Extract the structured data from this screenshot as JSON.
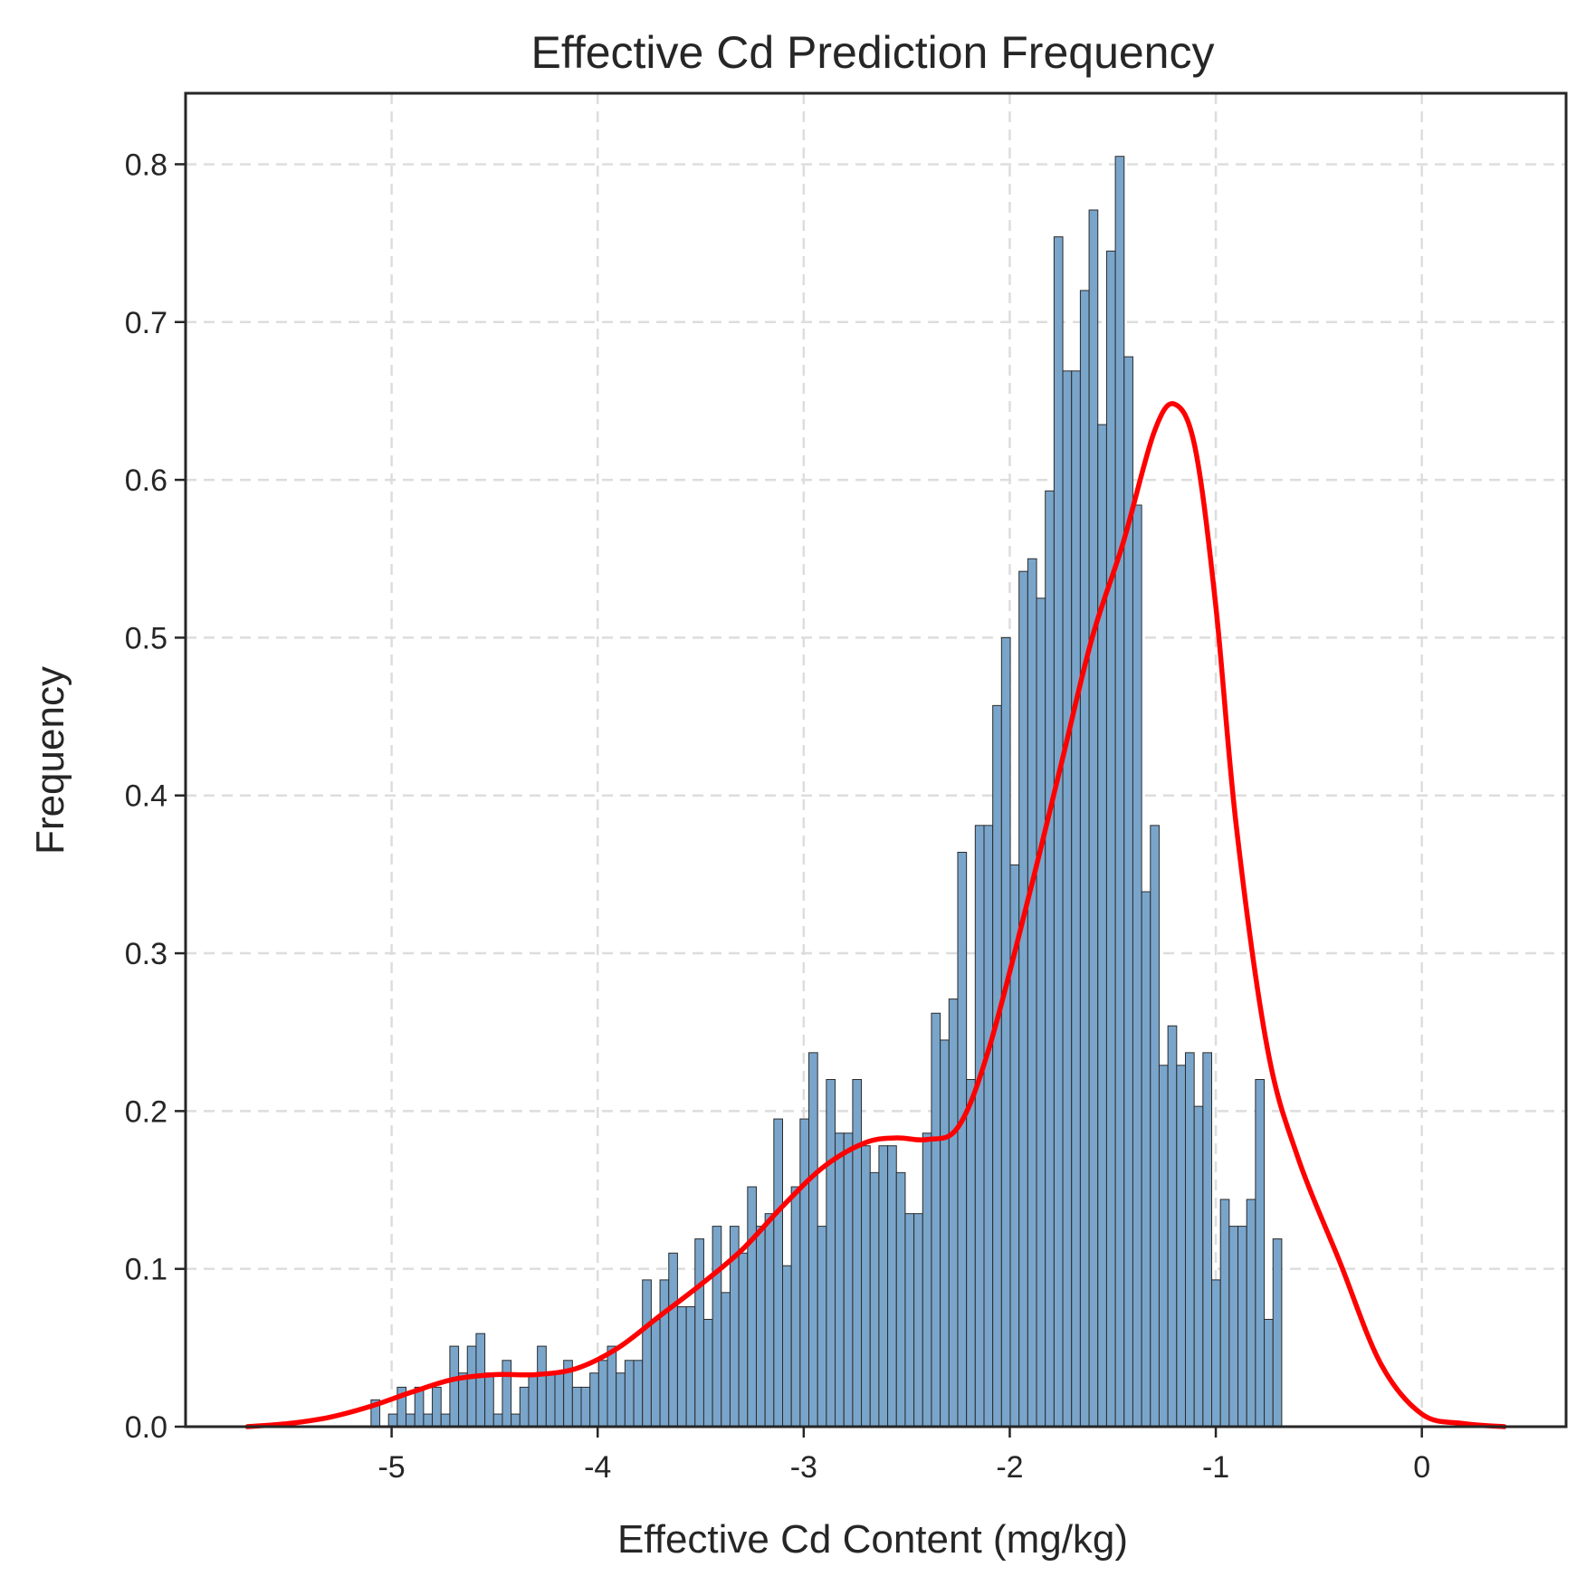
{
  "chart_data": {
    "type": "bar",
    "title": "Effective Cd Prediction Frequency",
    "xlabel": "Effective Cd Content (mg/kg)",
    "ylabel": "Frequency",
    "xlim": [
      -6.0,
      0.7
    ],
    "ylim": [
      0,
      0.845
    ],
    "xticks": [
      -5,
      -4,
      -3,
      -2,
      -1,
      0
    ],
    "xtick_labels": [
      "-5",
      "-4",
      "-3",
      "-2",
      "-1",
      "0"
    ],
    "yticks": [
      0,
      0.1,
      0.2,
      0.3,
      0.4,
      0.5,
      0.6,
      0.7,
      0.8
    ],
    "ytick_labels": [
      "0.0",
      "0.1",
      "0.2",
      "0.3",
      "0.4",
      "0.5",
      "0.6",
      "0.7",
      "0.8"
    ],
    "grid": true,
    "colors": {
      "bars": "#7aa5cb",
      "bar_edge": "#2b2b2b",
      "kde": "#ff0000"
    },
    "histogram": {
      "bin_start": -5.1,
      "bin_width": 0.0425,
      "values": [
        0.017,
        0.0,
        0.008,
        0.025,
        0.008,
        0.025,
        0.008,
        0.025,
        0.008,
        0.051,
        0.034,
        0.051,
        0.059,
        0.034,
        0.008,
        0.042,
        0.008,
        0.025,
        0.034,
        0.051,
        0.034,
        0.034,
        0.042,
        0.025,
        0.025,
        0.034,
        0.042,
        0.051,
        0.034,
        0.042,
        0.042,
        0.093,
        0.068,
        0.093,
        0.11,
        0.076,
        0.076,
        0.119,
        0.068,
        0.127,
        0.085,
        0.127,
        0.11,
        0.152,
        0.127,
        0.135,
        0.195,
        0.102,
        0.152,
        0.195,
        0.237,
        0.127,
        0.22,
        0.186,
        0.186,
        0.22,
        0.178,
        0.161,
        0.178,
        0.178,
        0.161,
        0.135,
        0.135,
        0.186,
        0.262,
        0.245,
        0.271,
        0.364,
        0.22,
        0.381,
        0.381,
        0.457,
        0.5,
        0.356,
        0.542,
        0.55,
        0.525,
        0.593,
        0.754,
        0.669,
        0.669,
        0.72,
        0.771,
        0.635,
        0.745,
        0.805,
        0.678,
        0.584,
        0.339,
        0.381,
        0.229,
        0.254,
        0.229,
        0.237,
        0.203,
        0.237,
        0.093,
        0.144,
        0.127,
        0.127,
        0.144,
        0.22,
        0.068,
        0.119
      ]
    },
    "kde": {
      "x": [
        -5.7,
        -5.5,
        -5.3,
        -5.1,
        -4.9,
        -4.7,
        -4.5,
        -4.3,
        -4.1,
        -3.9,
        -3.7,
        -3.5,
        -3.3,
        -3.1,
        -2.9,
        -2.7,
        -2.55,
        -2.4,
        -2.25,
        -2.1,
        -1.9,
        -1.75,
        -1.6,
        -1.45,
        -1.3,
        -1.2,
        -1.1,
        -1.0,
        -0.9,
        -0.75,
        -0.6,
        -0.4,
        -0.2,
        0.0,
        0.2,
        0.4
      ],
      "y": [
        0.0,
        0.002,
        0.006,
        0.013,
        0.022,
        0.03,
        0.033,
        0.033,
        0.037,
        0.05,
        0.07,
        0.09,
        0.112,
        0.14,
        0.165,
        0.18,
        0.183,
        0.182,
        0.19,
        0.24,
        0.34,
        0.42,
        0.5,
        0.56,
        0.63,
        0.648,
        0.62,
        0.52,
        0.38,
        0.24,
        0.17,
        0.105,
        0.04,
        0.008,
        0.002,
        0.0
      ]
    }
  }
}
